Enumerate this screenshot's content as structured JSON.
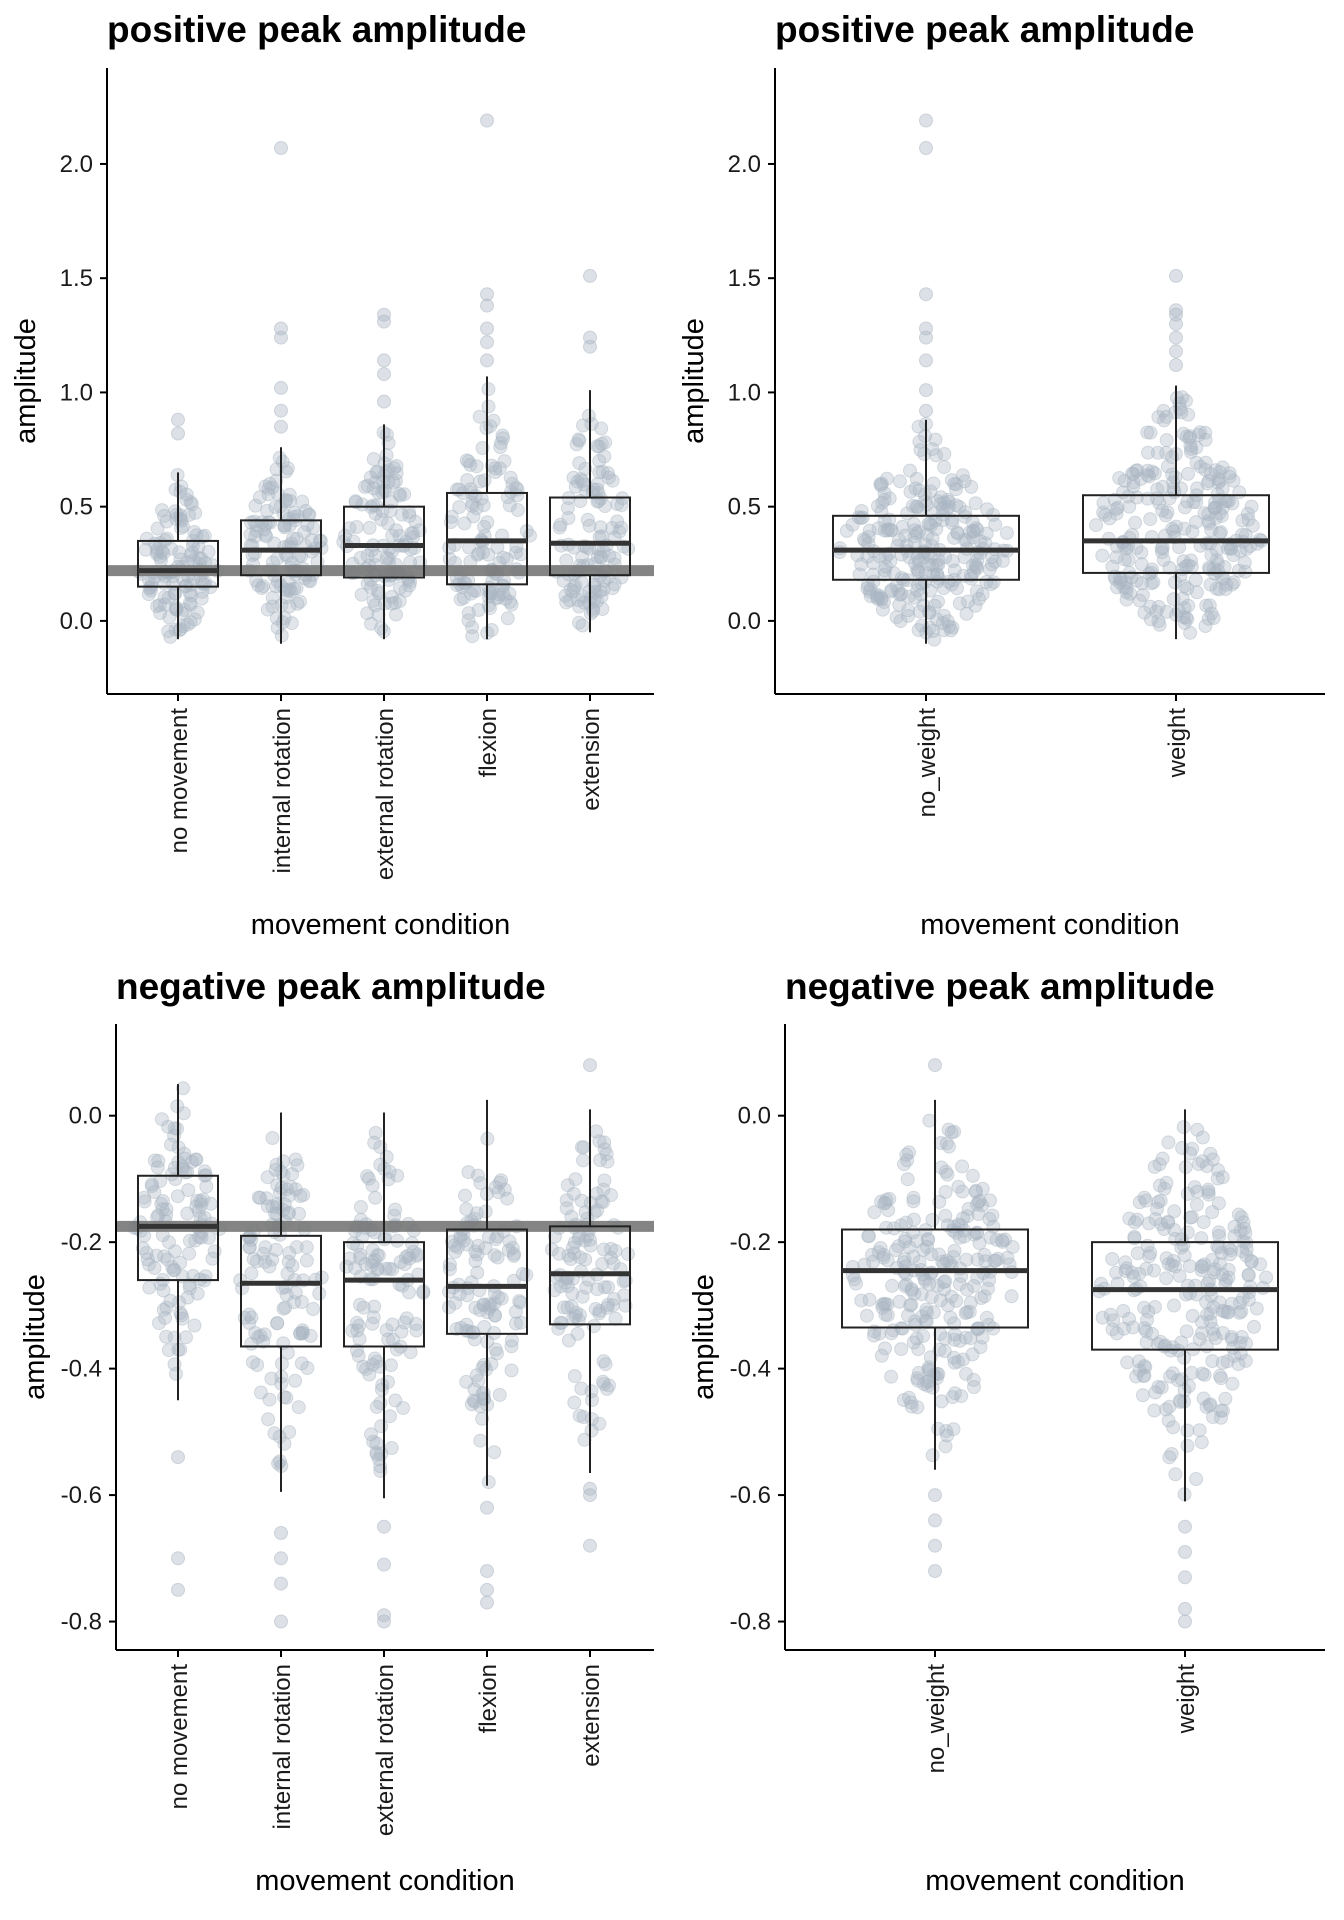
{
  "colors": {
    "point": "#a9b5c2",
    "box_border": "#222222",
    "median": "#333333",
    "ref_line": "#777777"
  },
  "chart_data": [
    {
      "type": "box",
      "title": "positive peak amplitude",
      "xlabel": "movement condition",
      "ylabel": "amplitude",
      "ylim": [
        -0.32,
        2.42
      ],
      "yticks": [
        0.0,
        0.5,
        1.0,
        1.5,
        2.0
      ],
      "ytick_labels": [
        "0.0",
        "0.5",
        "1.0",
        "1.5",
        "2.0"
      ],
      "reference_line": 0.22,
      "categories": [
        "no movement",
        "internal rotation",
        "external rotation",
        "flexion",
        "extension"
      ],
      "boxes": [
        {
          "q1": 0.15,
          "median": 0.22,
          "q3": 0.35,
          "whisker_low": -0.08,
          "whisker_high": 0.65,
          "outliers": [
            0.82,
            0.88
          ]
        },
        {
          "q1": 0.2,
          "median": 0.31,
          "q3": 0.44,
          "whisker_low": -0.1,
          "whisker_high": 0.76,
          "outliers": [
            0.85,
            0.92,
            1.02,
            1.24,
            1.28,
            2.07
          ]
        },
        {
          "q1": 0.19,
          "median": 0.33,
          "q3": 0.5,
          "whisker_low": -0.08,
          "whisker_high": 0.86,
          "outliers": [
            0.96,
            1.08,
            1.14,
            1.31,
            1.34
          ]
        },
        {
          "q1": 0.16,
          "median": 0.35,
          "q3": 0.56,
          "whisker_low": -0.08,
          "whisker_high": 1.07,
          "outliers": [
            1.14,
            1.22,
            1.28,
            1.38,
            1.43,
            2.19
          ]
        },
        {
          "q1": 0.2,
          "median": 0.34,
          "q3": 0.54,
          "whisker_low": -0.05,
          "whisker_high": 1.01,
          "outliers": [
            1.2,
            1.24,
            1.51
          ]
        }
      ]
    },
    {
      "type": "box",
      "title": "positive peak amplitude",
      "xlabel": "movement condition",
      "ylabel": "amplitude",
      "ylim": [
        -0.32,
        2.42
      ],
      "yticks": [
        0.0,
        0.5,
        1.0,
        1.5,
        2.0
      ],
      "ytick_labels": [
        "0.0",
        "0.5",
        "1.0",
        "1.5",
        "2.0"
      ],
      "categories": [
        "no_weight",
        "weight"
      ],
      "boxes": [
        {
          "q1": 0.18,
          "median": 0.31,
          "q3": 0.46,
          "whisker_low": -0.1,
          "whisker_high": 0.88,
          "outliers": [
            0.92,
            1.01,
            1.14,
            1.24,
            1.28,
            1.43,
            2.07,
            2.19
          ]
        },
        {
          "q1": 0.21,
          "median": 0.35,
          "q3": 0.55,
          "whisker_low": -0.08,
          "whisker_high": 1.03,
          "outliers": [
            1.12,
            1.18,
            1.24,
            1.3,
            1.34,
            1.36,
            1.51
          ]
        }
      ]
    },
    {
      "type": "box",
      "title": "negative peak amplitude",
      "xlabel": "movement condition",
      "ylabel": "amplitude",
      "ylim": [
        -0.845,
        0.145
      ],
      "yticks": [
        0.0,
        -0.2,
        -0.4,
        -0.6,
        -0.8
      ],
      "ytick_labels": [
        "0.0",
        "-0.2",
        "-0.4",
        "-0.6",
        "-0.8"
      ],
      "reference_line": -0.175,
      "categories": [
        "no movement",
        "internal rotation",
        "external rotation",
        "flexion",
        "extension"
      ],
      "boxes": [
        {
          "q1": -0.26,
          "median": -0.175,
          "q3": -0.095,
          "whisker_low": -0.45,
          "whisker_high": 0.05,
          "outliers": [
            -0.54,
            -0.7,
            -0.75
          ]
        },
        {
          "q1": -0.365,
          "median": -0.265,
          "q3": -0.19,
          "whisker_low": -0.595,
          "whisker_high": 0.005,
          "outliers": [
            -0.66,
            -0.7,
            -0.74,
            -0.8
          ]
        },
        {
          "q1": -0.365,
          "median": -0.26,
          "q3": -0.2,
          "whisker_low": -0.605,
          "whisker_high": 0.005,
          "outliers": [
            -0.65,
            -0.71,
            -0.79,
            -0.8
          ]
        },
        {
          "q1": -0.345,
          "median": -0.27,
          "q3": -0.18,
          "whisker_low": -0.585,
          "whisker_high": 0.025,
          "outliers": [
            -0.62,
            -0.72,
            -0.75,
            -0.77
          ]
        },
        {
          "q1": -0.33,
          "median": -0.25,
          "q3": -0.175,
          "whisker_low": -0.565,
          "whisker_high": 0.01,
          "outliers": [
            -0.59,
            -0.6,
            -0.68,
            0.08
          ]
        }
      ]
    },
    {
      "type": "box",
      "title": "negative peak amplitude",
      "xlabel": "movement condition",
      "ylabel": "amplitude",
      "ylim": [
        -0.845,
        0.145
      ],
      "yticks": [
        0.0,
        -0.2,
        -0.4,
        -0.6,
        -0.8
      ],
      "ytick_labels": [
        "0.0",
        "-0.2",
        "-0.4",
        "-0.6",
        "-0.8"
      ],
      "categories": [
        "no_weight",
        "weight"
      ],
      "boxes": [
        {
          "q1": -0.335,
          "median": -0.245,
          "q3": -0.18,
          "whisker_low": -0.56,
          "whisker_high": 0.025,
          "outliers": [
            -0.6,
            -0.64,
            -0.68,
            -0.72,
            0.08
          ]
        },
        {
          "q1": -0.37,
          "median": -0.275,
          "q3": -0.2,
          "whisker_low": -0.61,
          "whisker_high": 0.01,
          "outliers": [
            -0.65,
            -0.69,
            -0.73,
            -0.78,
            -0.8
          ]
        }
      ]
    }
  ]
}
